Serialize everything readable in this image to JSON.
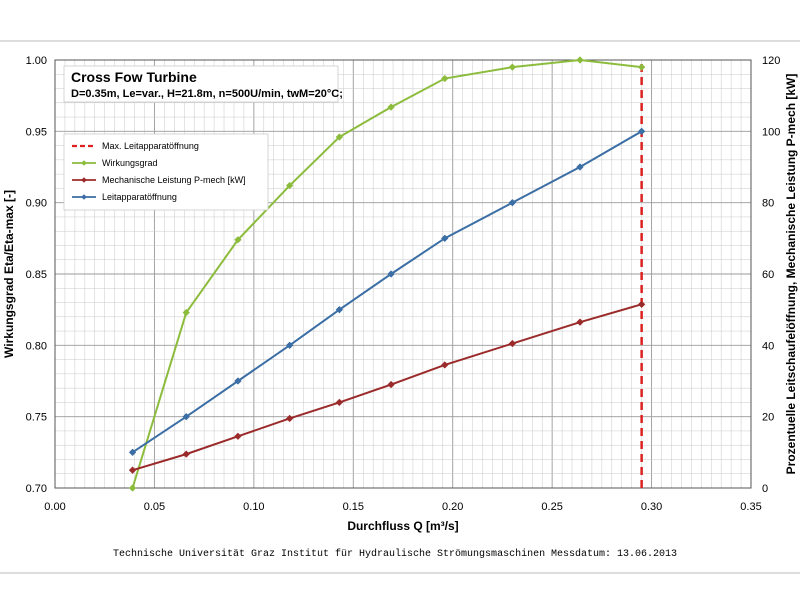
{
  "chart_data": {
    "type": "line",
    "title": "Cross Fow Turbine",
    "subtitle": "D=0.35m, Le=var., H=21.8m, n=500U/min, twM=20°C;",
    "xlabel": "Durchfluss Q [m³/s]",
    "ylabel_left": "Wirkungsgrad Eta/Eta-max [-]",
    "ylabel_right": "Prozentuelle Leitschaufelöffnung, Mechanische Leistung P-mech [kW]",
    "xlim": [
      0,
      0.35
    ],
    "ylim_left": [
      0.7,
      1.0
    ],
    "ylim_right": [
      0,
      120
    ],
    "x_ticks": [
      "0.00",
      "0.05",
      "0.10",
      "0.15",
      "0.20",
      "0.25",
      "0.30",
      "0.35"
    ],
    "y_left_ticks": [
      "0.70",
      "0.75",
      "0.80",
      "0.85",
      "0.90",
      "0.95",
      "1.00"
    ],
    "y_right_ticks": [
      "0",
      "20",
      "40",
      "60",
      "80",
      "100",
      "120"
    ],
    "grid": true,
    "legend_position": "top-left",
    "series": [
      {
        "name": "Max. Leitapparatöffnung",
        "axis": "left",
        "style": "dashed-vertical",
        "color": "#dd2222",
        "x": [
          0.295,
          0.295
        ],
        "y": [
          0.7,
          1.0
        ]
      },
      {
        "name": "Wirkungsgrad",
        "axis": "left",
        "color": "#8cbc3c",
        "x": [
          0.039,
          0.066,
          0.092,
          0.118,
          0.143,
          0.169,
          0.196,
          0.23,
          0.264,
          0.295
        ],
        "y": [
          0.7,
          0.823,
          0.874,
          0.912,
          0.946,
          0.967,
          0.987,
          0.995,
          1.0,
          0.995
        ]
      },
      {
        "name": "Mechanische Leistung P-mech [kW]",
        "axis": "right",
        "color": "#9b2b2b",
        "x": [
          0.039,
          0.066,
          0.092,
          0.118,
          0.143,
          0.169,
          0.196,
          0.23,
          0.264,
          0.295
        ],
        "y": [
          5,
          9.5,
          14.5,
          19.5,
          24,
          29,
          34.5,
          40.5,
          46.5,
          51.5
        ]
      },
      {
        "name": "Leitapparatöffnung",
        "axis": "right",
        "color": "#3b6ea5",
        "x": [
          0.039,
          0.066,
          0.092,
          0.118,
          0.143,
          0.169,
          0.196,
          0.23,
          0.264,
          0.295
        ],
        "y": [
          10,
          20,
          30,
          40,
          50,
          60,
          70,
          80,
          90,
          100
        ]
      }
    ]
  },
  "footer": {
    "institution": "Technische Universität Graz  Institut für Hydraulische Strömungsmaschinen",
    "date_label": "Messdatum: 13.06.2013"
  }
}
